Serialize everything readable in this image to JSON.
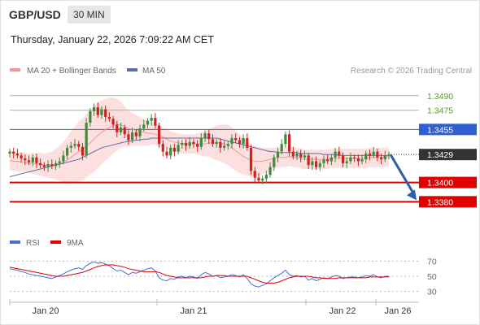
{
  "header": {
    "pair": "GBP/USD",
    "timeframe": "30 MIN",
    "datetime": "Thursday, January 22, 2026 7:09:22 AM CET"
  },
  "legend": {
    "ma20_bb": "MA 20 + Bollinger Bands",
    "ma50": "MA 50",
    "copyright": "Research © 2026 Trading Central"
  },
  "rsi_legend": {
    "rsi": "RSI",
    "ma9": "9MA"
  },
  "colors": {
    "bull": "#3c8c3c",
    "bear": "#cc2222",
    "ma20": "#ee9999",
    "bollinger_fill": "#fbd9d9",
    "ma50": "#5b6ea8",
    "resistance_green": "#9bc96a",
    "resistance_blue": "#2f5fd0",
    "support_red": "#e00000",
    "current_price": "#333333",
    "arrow": "#2f5fa8",
    "rsi_line": "#4a6cd4",
    "rsi_ma_line": "#e00000"
  },
  "chart_data": {
    "type": "candlestick",
    "x_ticks": [
      "Jan 20",
      "Jan 21",
      "Jan 22",
      "Jan 26"
    ],
    "ylim": [
      1.3355,
      1.3505
    ],
    "levels": [
      {
        "value": 1.349,
        "label": "1.3490",
        "kind": "resistance-green"
      },
      {
        "value": 1.3475,
        "label": "1.3475",
        "kind": "resistance-green"
      },
      {
        "value": 1.3455,
        "label": "1.3455",
        "kind": "resistance-blue"
      },
      {
        "value": 1.3429,
        "label": "1.3429",
        "kind": "current-price"
      },
      {
        "value": 1.34,
        "label": "1.3400",
        "kind": "support-red"
      },
      {
        "value": 1.338,
        "label": "1.3380",
        "kind": "support-red"
      }
    ],
    "close": [
      1.3432,
      1.343,
      1.3428,
      1.3425,
      1.3423,
      1.3421,
      1.3426,
      1.342,
      1.3418,
      1.3416,
      1.3419,
      1.3417,
      1.342,
      1.3422,
      1.3428,
      1.3436,
      1.3438,
      1.344,
      1.3437,
      1.3428,
      1.3462,
      1.3474,
      1.3478,
      1.347,
      1.3476,
      1.3468,
      1.3466,
      1.346,
      1.3452,
      1.3457,
      1.345,
      1.3444,
      1.3452,
      1.3448,
      1.3456,
      1.346,
      1.3464,
      1.3467,
      1.3459,
      1.344,
      1.3432,
      1.3428,
      1.3436,
      1.3432,
      1.3439,
      1.3441,
      1.3438,
      1.3442,
      1.344,
      1.3437,
      1.3446,
      1.3451,
      1.3445,
      1.344,
      1.3442,
      1.3436,
      1.3438,
      1.344,
      1.3446,
      1.3444,
      1.344,
      1.3446,
      1.3436,
      1.3412,
      1.3405,
      1.3402,
      1.3404,
      1.3408,
      1.3416,
      1.3426,
      1.3432,
      1.344,
      1.345,
      1.3432,
      1.3427,
      1.343,
      1.3426,
      1.3428,
      1.3418,
      1.3422,
      1.3416,
      1.342,
      1.3424,
      1.3422,
      1.3426,
      1.3432,
      1.3428,
      1.342,
      1.3422,
      1.3426,
      1.3425,
      1.3422,
      1.3424,
      1.343,
      1.3428,
      1.3432,
      1.3426,
      1.3424,
      1.3428,
      1.3429
    ],
    "ma20": [
      1.3423,
      1.3422,
      1.3422,
      1.3421,
      1.3421,
      1.342,
      1.342,
      1.3419,
      1.3419,
      1.3418,
      1.3418,
      1.3418,
      1.3419,
      1.342,
      1.3421,
      1.3423,
      1.3426,
      1.3429,
      1.3432,
      1.3434,
      1.3438,
      1.3441,
      1.3445,
      1.3449,
      1.3452,
      1.3455,
      1.3457,
      1.3459,
      1.346,
      1.346,
      1.3458,
      1.3456,
      1.3455,
      1.3454,
      1.3453,
      1.3452,
      1.3451,
      1.3451,
      1.345,
      1.3449,
      1.3447,
      1.3445,
      1.3443,
      1.3442,
      1.3441,
      1.344,
      1.344,
      1.344,
      1.344,
      1.344,
      1.344,
      1.344,
      1.3441,
      1.3441,
      1.3441,
      1.3441,
      1.344,
      1.3439,
      1.3436,
      1.3433,
      1.343,
      1.3427,
      1.3425,
      1.3423,
      1.3422,
      1.3422,
      1.3422,
      1.3423,
      1.3424,
      1.3425,
      1.3426,
      1.3426,
      1.3426,
      1.3427,
      1.3426,
      1.3426,
      1.3425,
      1.3424,
      1.3424,
      1.3424,
      1.3424,
      1.3424,
      1.3424,
      1.3424,
      1.3425,
      1.3425,
      1.3425,
      1.3425,
      1.3425,
      1.3425,
      1.3425,
      1.3425,
      1.3425,
      1.3425,
      1.3426,
      1.3426,
      1.3426,
      1.3426,
      1.3426,
      1.3427
    ],
    "ma50": [
      1.3406,
      1.3407,
      1.3408,
      1.3409,
      1.341,
      1.3411,
      1.3412,
      1.3413,
      1.3414,
      1.3415,
      1.3416,
      1.3417,
      1.3418,
      1.3419,
      1.342,
      1.3421,
      1.3422,
      1.3423,
      1.3424,
      1.3426,
      1.3428,
      1.343,
      1.3432,
      1.3434,
      1.3436,
      1.3437,
      1.3438,
      1.3439,
      1.344,
      1.3441,
      1.3442,
      1.3443,
      1.3443,
      1.3444,
      1.3444,
      1.3445,
      1.3445,
      1.3446,
      1.3446,
      1.3446,
      1.3446,
      1.3446,
      1.3446,
      1.3446,
      1.3446,
      1.3446,
      1.3446,
      1.3446,
      1.3446,
      1.3446,
      1.3446,
      1.3446,
      1.3446,
      1.3446,
      1.3446,
      1.3445,
      1.3444,
      1.3443,
      1.3442,
      1.3441,
      1.344,
      1.3439,
      1.3438,
      1.3437,
      1.3436,
      1.3435,
      1.3434,
      1.3433,
      1.3432,
      1.3432,
      1.3431,
      1.3431,
      1.3431,
      1.3431,
      1.3431,
      1.3431,
      1.343,
      1.343,
      1.343,
      1.343,
      1.343,
      1.343,
      1.3429,
      1.3429,
      1.3429,
      1.3429,
      1.3428,
      1.3428,
      1.3428,
      1.3428,
      1.3428,
      1.3428,
      1.3428,
      1.3428,
      1.3428,
      1.3428,
      1.3428,
      1.3428,
      1.3428,
      1.3428
    ],
    "bb_width": [
      0.001,
      0.001,
      0.001,
      0.001,
      0.001,
      0.001,
      0.0011,
      0.0011,
      0.0012,
      0.0012,
      0.0013,
      0.0014,
      0.0016,
      0.0018,
      0.0021,
      0.0024,
      0.0027,
      0.0029,
      0.0031,
      0.0032,
      0.0033,
      0.0033,
      0.0034,
      0.0034,
      0.0033,
      0.0032,
      0.0031,
      0.0029,
      0.0027,
      0.0024,
      0.0021,
      0.0019,
      0.0017,
      0.0016,
      0.0015,
      0.0014,
      0.0013,
      0.0012,
      0.0011,
      0.0011,
      0.001,
      0.001,
      0.001,
      0.001,
      0.001,
      0.001,
      0.001,
      0.001,
      0.001,
      0.0011,
      0.0012,
      0.0013,
      0.0014,
      0.0016,
      0.0018,
      0.0019,
      0.002,
      0.0021,
      0.0021,
      0.0021,
      0.002,
      0.0019,
      0.0018,
      0.0017,
      0.0016,
      0.0015,
      0.0014,
      0.0013,
      0.0012,
      0.0011,
      0.001,
      0.001,
      0.001,
      0.001,
      0.001,
      0.001,
      0.001,
      0.001,
      0.001,
      0.001,
      0.001,
      0.001,
      0.001,
      0.001,
      0.001,
      0.001,
      0.001,
      0.001,
      0.001,
      0.001,
      0.001,
      0.001,
      0.001,
      0.001,
      0.001,
      0.001,
      0.001,
      0.001,
      0.001,
      0.001
    ],
    "projection": {
      "from": 1.3429,
      "to": 1.338
    },
    "rsi": {
      "ylim": [
        20,
        80
      ],
      "ticks": [
        70,
        50,
        30
      ],
      "rsi": [
        60,
        59,
        58,
        56,
        55,
        53,
        52,
        51,
        50,
        49,
        48,
        47,
        49,
        51,
        53,
        56,
        58,
        60,
        61,
        59,
        64,
        67,
        69,
        67,
        68,
        66,
        64,
        60,
        57,
        58,
        55,
        52,
        55,
        54,
        56,
        58,
        60,
        61,
        57,
        48,
        45,
        44,
        47,
        46,
        49,
        50,
        48,
        50,
        49,
        47,
        52,
        55,
        53,
        50,
        51,
        48,
        49,
        50,
        52,
        51,
        49,
        52,
        47,
        40,
        37,
        36,
        38,
        40,
        44,
        48,
        51,
        54,
        58,
        52,
        50,
        51,
        49,
        50,
        45,
        47,
        44,
        46,
        48,
        47,
        49,
        51,
        50,
        47,
        48,
        49,
        49,
        48,
        49,
        51,
        50,
        52,
        49,
        48,
        50,
        50
      ],
      "ma9": [
        62,
        61,
        60,
        59,
        58,
        57,
        56,
        55,
        54,
        53,
        52,
        51,
        50,
        50,
        50,
        51,
        52,
        53,
        54,
        55,
        57,
        59,
        61,
        63,
        64,
        65,
        65,
        65,
        64,
        63,
        62,
        60,
        59,
        58,
        57,
        56,
        56,
        56,
        56,
        55,
        53,
        51,
        50,
        49,
        48,
        48,
        48,
        48,
        48,
        48,
        48,
        49,
        50,
        50,
        51,
        51,
        51,
        50,
        50,
        50,
        50,
        50,
        50,
        48,
        46,
        44,
        42,
        41,
        41,
        41,
        42,
        44,
        46,
        48,
        49,
        50,
        50,
        50,
        50,
        49,
        48,
        48,
        47,
        47,
        47,
        47,
        48,
        48,
        48,
        48,
        48,
        48,
        48,
        48,
        49,
        49,
        49,
        49,
        49,
        49
      ]
    }
  }
}
